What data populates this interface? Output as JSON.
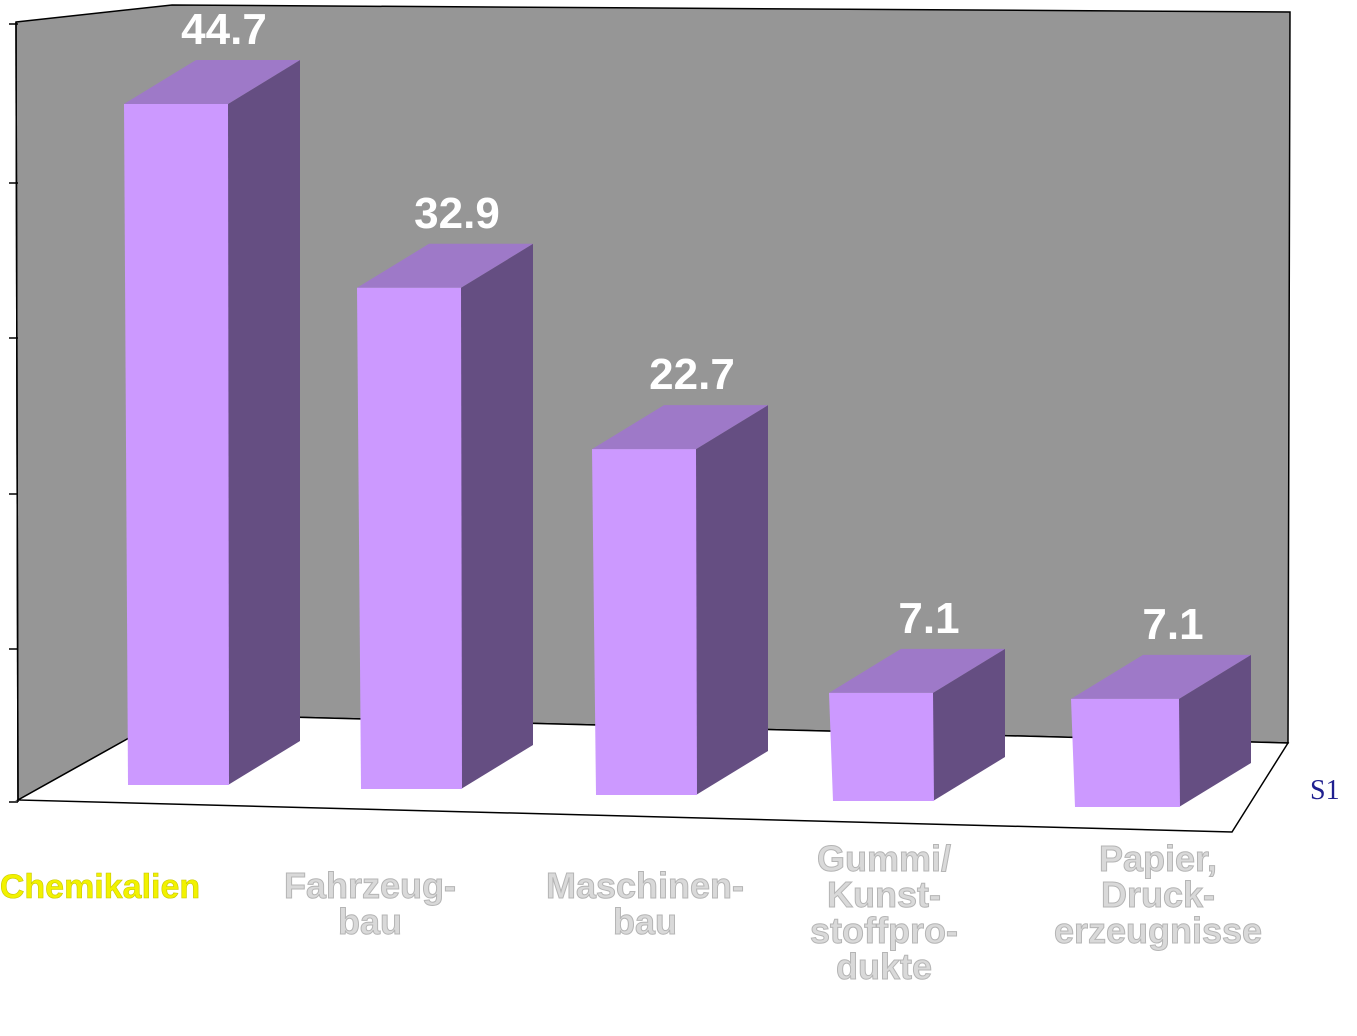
{
  "chart_data": {
    "type": "bar",
    "categories": [
      "Chemikalien",
      "Fahrzeug-\nbau",
      "Maschinen-\nbau",
      "Gummi/\nKunst-\nstoffpro-\ndukte",
      "Papier,\nDruck-\nerzeugnisse"
    ],
    "series": [
      {
        "name": "S1",
        "values": [
          44.7,
          32.9,
          22.7,
          7.1,
          7.1
        ]
      }
    ],
    "value_labels": [
      "44.7",
      "32.9",
      "22.7",
      "7.1",
      "7.1"
    ],
    "ylim": [
      0,
      50
    ],
    "grid": false,
    "projection": "3d",
    "legend": "series label at right end of depth axis",
    "colors": {
      "wall": "#969696",
      "floor": "#ffffff",
      "bar_front": "#cc99ff",
      "bar_top": "#9e79c8",
      "bar_side": "#654e82",
      "value_label": "#ffffff",
      "category_label": "#d9d9d9",
      "highlight_label": "#f2f200",
      "series_label": "#1f1f8f"
    }
  }
}
